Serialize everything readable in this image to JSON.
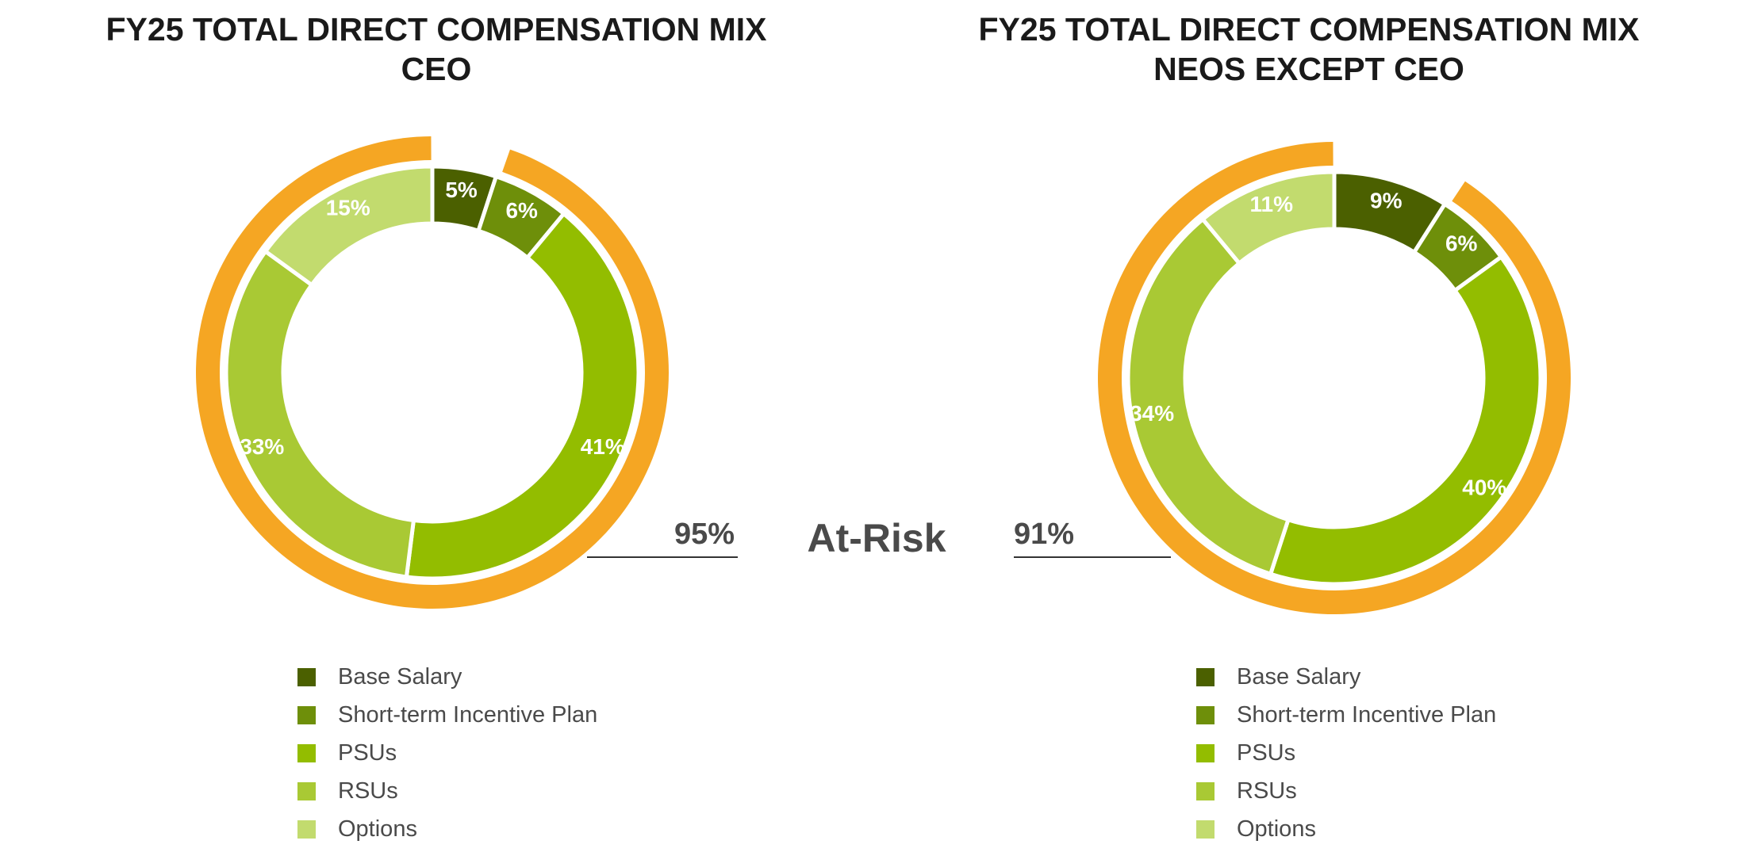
{
  "center_label": "At-Risk",
  "colors": {
    "at_risk_ring": "#F5A623",
    "base_salary": "#4B6000",
    "short_term_incentive": "#6E8F0A",
    "psus": "#93BD00",
    "rsus": "#A9C934",
    "options": "#C2DB6E"
  },
  "chart_data": [
    {
      "type": "pie",
      "title": "FY25 TOTAL DIRECT COMPENSATION MIX",
      "subtitle": "CEO",
      "categories": [
        "Base Salary",
        "Short-term Incentive Plan",
        "PSUs",
        "RSUs",
        "Options"
      ],
      "values": [
        5,
        6,
        41,
        33,
        15
      ],
      "labels": [
        "5%",
        "6%",
        "41%",
        "33%",
        "15%"
      ],
      "at_risk_total": "95%",
      "at_risk_categories": [
        "Short-term Incentive Plan",
        "PSUs",
        "RSUs",
        "Options"
      ],
      "legend": [
        "Base Salary",
        "Short-term Incentive Plan",
        "PSUs",
        "RSUs",
        "Options"
      ]
    },
    {
      "type": "pie",
      "title": "FY25 TOTAL DIRECT COMPENSATION MIX",
      "subtitle": "NEOS EXCEPT CEO",
      "categories": [
        "Base Salary",
        "Short-term Incentive Plan",
        "PSUs",
        "RSUs",
        "Options"
      ],
      "values": [
        9,
        6,
        40,
        34,
        11
      ],
      "labels": [
        "9%",
        "6%",
        "40%",
        "34%",
        "11%"
      ],
      "at_risk_total": "91%",
      "at_risk_categories": [
        "Short-term Incentive Plan",
        "PSUs",
        "RSUs",
        "Options"
      ],
      "legend": [
        "Base Salary",
        "Short-term Incentive Plan",
        "PSUs",
        "RSUs",
        "Options"
      ]
    }
  ]
}
